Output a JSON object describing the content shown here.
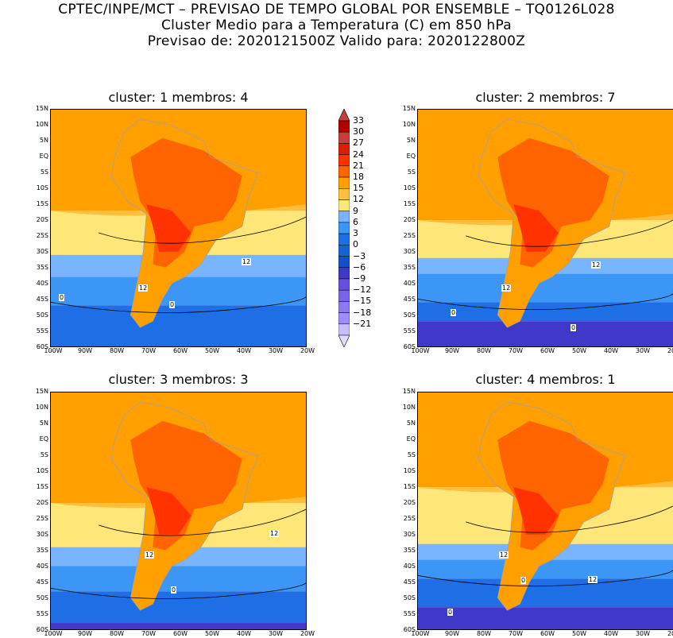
{
  "header": {
    "line1": "CPTEC/INPE/MCT – PREVISAO DE TEMPO GLOBAL POR ENSEMBLE – TQ0126L028",
    "line2": "Cluster Medio para a Temperatura (C) em 850 hPa",
    "line3": "Previsao de: 2020121500Z    Valido para: 2020122800Z"
  },
  "panels": [
    {
      "title": "cluster: 1   membros: 4",
      "contour_labels": [
        "12",
        "12",
        "0",
        "0"
      ]
    },
    {
      "title": "cluster: 2   membros: 7",
      "contour_labels": [
        "12",
        "12",
        "0",
        "0"
      ]
    },
    {
      "title": "cluster: 3   membros: 3",
      "contour_labels": [
        "12",
        "12",
        "0"
      ]
    },
    {
      "title": "cluster: 4   membros: 1",
      "contour_labels": [
        "12",
        "12",
        "0",
        "0"
      ]
    }
  ],
  "lat_ticks": [
    "15N",
    "10N",
    "5N",
    "EQ",
    "5S",
    "10S",
    "15S",
    "20S",
    "25S",
    "30S",
    "35S",
    "40S",
    "45S",
    "50S",
    "55S",
    "60S"
  ],
  "lon_ticks": [
    "100W",
    "90W",
    "80W",
    "70W",
    "60W",
    "50W",
    "40W",
    "30W",
    "20W"
  ],
  "colorbar": {
    "levels": [
      "33",
      "30",
      "27",
      "24",
      "21",
      "18",
      "15",
      "12",
      "9",
      "6",
      "3",
      "0",
      "−3",
      "−6",
      "−9",
      "−12",
      "−15",
      "−18",
      "−21"
    ],
    "colors": [
      "#b00000",
      "#c83c3c",
      "#dc1e00",
      "#ff3200",
      "#ff6400",
      "#ffa000",
      "#ffbe3c",
      "#ffe678",
      "#78b4ff",
      "#3c96f5",
      "#1e6ee6",
      "#1464d2",
      "#1450c8",
      "#4038c8",
      "#6450dc",
      "#7864e6",
      "#8c78f0",
      "#a08cff",
      "#c8beff"
    ],
    "top_arrow": "#c83c3c",
    "bottom_arrow": "#dcdcff"
  }
}
